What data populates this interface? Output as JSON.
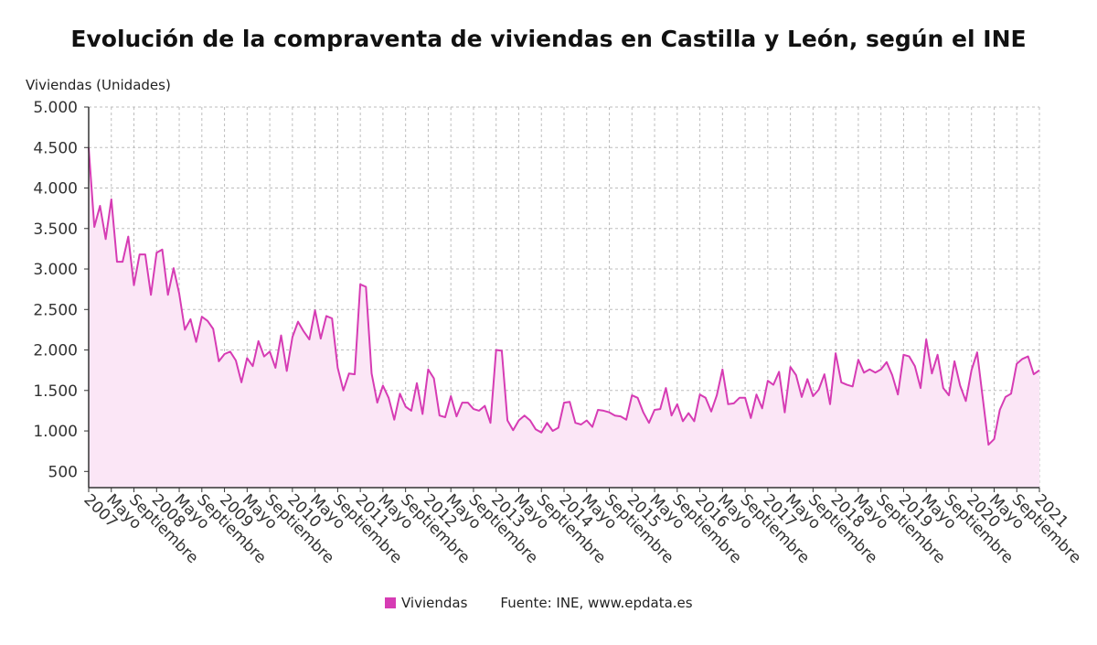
{
  "chart_data": {
    "type": "area",
    "title": "Evolución de la compraventa de viviendas en Castilla y León, según el INE",
    "ylabel": "Viviendas (Unidades)",
    "ylim": [
      300,
      5000
    ],
    "yticks": [
      500,
      1000,
      1500,
      2000,
      2500,
      3000,
      3500,
      4000,
      4500,
      5000
    ],
    "ytick_labels": [
      "500",
      "1.000",
      "1.500",
      "2.000",
      "2.500",
      "3.000",
      "3.500",
      "4.000",
      "4.500",
      "5.000"
    ],
    "xticks": [
      {
        "month": 0,
        "label": "2007"
      },
      {
        "month": 4,
        "label": "Mayo"
      },
      {
        "month": 8,
        "label": "Septiembre"
      },
      {
        "month": 12,
        "label": "2008"
      },
      {
        "month": 16,
        "label": "Mayo"
      },
      {
        "month": 20,
        "label": "Septiembre"
      },
      {
        "month": 24,
        "label": "2009"
      },
      {
        "month": 28,
        "label": "Mayo"
      },
      {
        "month": 32,
        "label": "Septiembre"
      },
      {
        "month": 36,
        "label": "2010"
      },
      {
        "month": 40,
        "label": "Mayo"
      },
      {
        "month": 44,
        "label": "Septiembre"
      },
      {
        "month": 48,
        "label": "2011"
      },
      {
        "month": 52,
        "label": "Mayo"
      },
      {
        "month": 56,
        "label": "Septiembre"
      },
      {
        "month": 60,
        "label": "2012"
      },
      {
        "month": 64,
        "label": "Mayo"
      },
      {
        "month": 68,
        "label": "Septiembre"
      },
      {
        "month": 72,
        "label": "2013"
      },
      {
        "month": 76,
        "label": "Mayo"
      },
      {
        "month": 80,
        "label": "Septiembre"
      },
      {
        "month": 84,
        "label": "2014"
      },
      {
        "month": 88,
        "label": "Mayo"
      },
      {
        "month": 92,
        "label": "Septiembre"
      },
      {
        "month": 96,
        "label": "2015"
      },
      {
        "month": 100,
        "label": "Mayo"
      },
      {
        "month": 104,
        "label": "Septiembre"
      },
      {
        "month": 108,
        "label": "2016"
      },
      {
        "month": 112,
        "label": "Mayo"
      },
      {
        "month": 116,
        "label": "Septiembre"
      },
      {
        "month": 120,
        "label": "2017"
      },
      {
        "month": 124,
        "label": "Mayo"
      },
      {
        "month": 128,
        "label": "Septiembre"
      },
      {
        "month": 132,
        "label": "2018"
      },
      {
        "month": 136,
        "label": "Mayo"
      },
      {
        "month": 140,
        "label": "Septiembre"
      },
      {
        "month": 144,
        "label": "2019"
      },
      {
        "month": 148,
        "label": "Mayo"
      },
      {
        "month": 152,
        "label": "Septiembre"
      },
      {
        "month": 156,
        "label": "2020"
      },
      {
        "month": 160,
        "label": "Mayo"
      },
      {
        "month": 164,
        "label": "Septiembre"
      },
      {
        "month": 168,
        "label": "2021"
      }
    ],
    "x_start": "2007-01",
    "x_end": "2021-01",
    "grid": true,
    "legend_position": "bottom",
    "series": [
      {
        "name": "Viviendas",
        "color": "#d63cb4",
        "fill": "#fbe6f6",
        "values": [
          4500,
          3520,
          3780,
          3370,
          3860,
          3090,
          3090,
          3400,
          2800,
          3180,
          3180,
          2680,
          3200,
          3240,
          2680,
          3010,
          2700,
          2250,
          2380,
          2100,
          2410,
          2360,
          2260,
          1860,
          1950,
          1980,
          1870,
          1600,
          1900,
          1800,
          2110,
          1920,
          1980,
          1780,
          2180,
          1740,
          2160,
          2350,
          2230,
          2130,
          2490,
          2140,
          2420,
          2390,
          1780,
          1500,
          1710,
          1700,
          2810,
          2780,
          1710,
          1350,
          1560,
          1410,
          1140,
          1460,
          1300,
          1250,
          1590,
          1210,
          1760,
          1650,
          1190,
          1170,
          1430,
          1180,
          1350,
          1350,
          1270,
          1250,
          1310,
          1100,
          2000,
          1990,
          1130,
          1010,
          1130,
          1190,
          1130,
          1020,
          980,
          1100,
          1000,
          1040,
          1350,
          1360,
          1100,
          1080,
          1130,
          1050,
          1260,
          1250,
          1230,
          1190,
          1180,
          1140,
          1440,
          1410,
          1230,
          1100,
          1260,
          1270,
          1530,
          1190,
          1330,
          1120,
          1220,
          1120,
          1450,
          1410,
          1240,
          1440,
          1760,
          1330,
          1340,
          1410,
          1410,
          1160,
          1450,
          1280,
          1620,
          1570,
          1730,
          1230,
          1790,
          1690,
          1420,
          1640,
          1430,
          1510,
          1700,
          1330,
          1960,
          1600,
          1570,
          1550,
          1880,
          1720,
          1760,
          1720,
          1760,
          1850,
          1690,
          1450,
          1940,
          1920,
          1800,
          1530,
          2130,
          1710,
          1940,
          1530,
          1440,
          1860,
          1560,
          1370,
          1750,
          1970,
          1400,
          830,
          900,
          1260,
          1420,
          1460,
          1830,
          1890,
          1920,
          1700,
          1750
        ]
      }
    ]
  },
  "legend": {
    "series_label": "Viviendas",
    "source": "Fuente: INE, www.epdata.es"
  }
}
